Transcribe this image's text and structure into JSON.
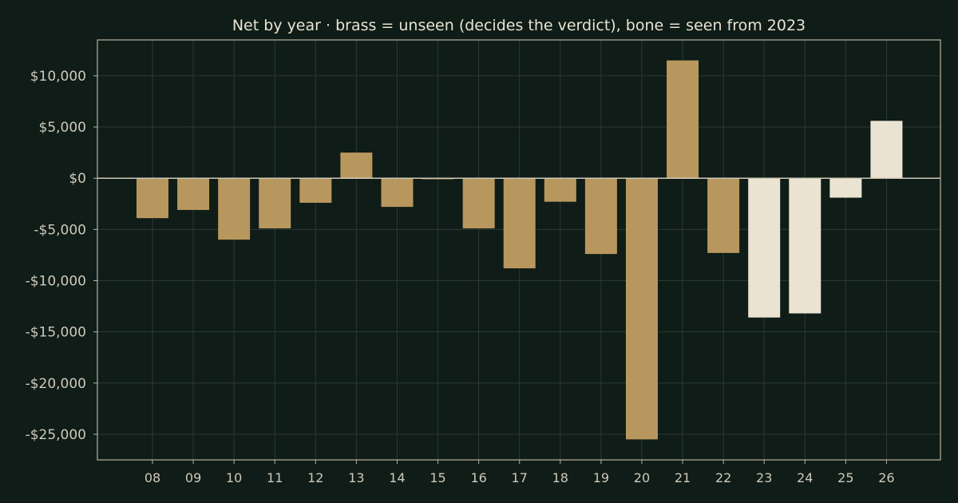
{
  "chart_data": {
    "type": "bar",
    "title": "Net by year  ·  brass = unseen (decides the verdict), bone = seen from 2023",
    "xlabel": "",
    "ylabel": "",
    "categories": [
      "08",
      "09",
      "10",
      "11",
      "12",
      "13",
      "14",
      "15",
      "16",
      "17",
      "18",
      "19",
      "20",
      "21",
      "22",
      "23",
      "24",
      "25",
      "26"
    ],
    "values": [
      -3900,
      -3100,
      -6000,
      -4900,
      -2400,
      2500,
      -2800,
      -100,
      -4900,
      -8800,
      -2300,
      -7400,
      -25500,
      11500,
      -7300,
      -13600,
      -13200,
      -1900,
      5600
    ],
    "series_groups": [
      "unseen",
      "unseen",
      "unseen",
      "unseen",
      "unseen",
      "unseen",
      "unseen",
      "unseen",
      "unseen",
      "unseen",
      "unseen",
      "unseen",
      "unseen",
      "unseen",
      "unseen",
      "seen",
      "seen",
      "seen",
      "seen"
    ],
    "ylim": [
      -27500,
      13500
    ],
    "yticks": [
      10000,
      5000,
      0,
      -5000,
      -10000,
      -15000,
      -20000,
      -25000
    ],
    "ytick_labels": [
      "$10,000",
      "$5,000",
      "$0",
      "-$5,000",
      "-$10,000",
      "-$15,000",
      "-$20,000",
      "-$25,000"
    ],
    "grid": true,
    "colors": {
      "background": "#0f1c17",
      "unseen": "#b8975e",
      "seen": "#ebe3d1",
      "axis": "#b9b3a2",
      "grid": "#2c3a33",
      "zero_line": "#cfc9b8"
    }
  }
}
